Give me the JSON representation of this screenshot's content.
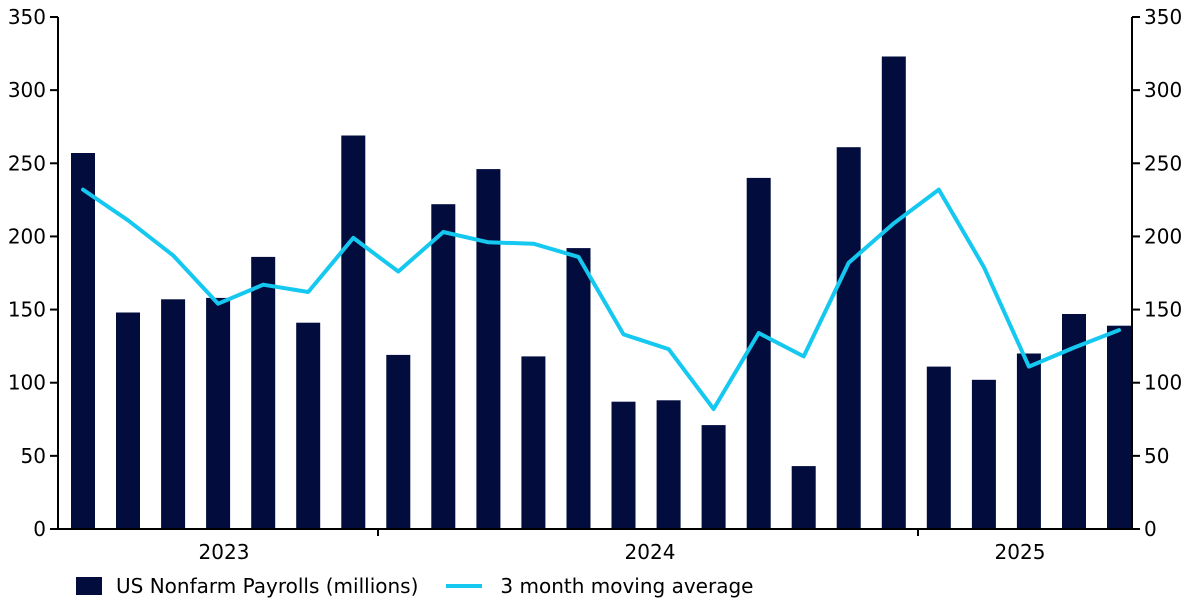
{
  "chart_data": {
    "type": "bar",
    "y_left_ticks": [
      "0",
      "50",
      "100",
      "150",
      "200",
      "250",
      "300",
      "350"
    ],
    "y_right_ticks": [
      "0",
      "50",
      "100",
      "150",
      "200",
      "250",
      "300",
      "350"
    ],
    "ylim": [
      0,
      350
    ],
    "x_labels": [
      "2023",
      "2024",
      "2025"
    ],
    "series": [
      {
        "name": "US Nonfarm Payrolls (millions)",
        "type": "bar",
        "color": "#020c3d",
        "values": [
          257,
          148,
          157,
          158,
          186,
          141,
          269,
          119,
          222,
          246,
          118,
          192,
          87,
          88,
          71,
          240,
          43,
          261,
          323,
          111,
          102,
          120,
          147,
          139
        ]
      },
      {
        "name": "3 month moving average",
        "type": "line",
        "color": "#14c8f0",
        "values": [
          232,
          211,
          187,
          154,
          167,
          162,
          199,
          176,
          203,
          196,
          195,
          186,
          133,
          123,
          82,
          134,
          118,
          182,
          209,
          232,
          179,
          111,
          124,
          136
        ]
      }
    ],
    "grid": false,
    "legend_position": "bottom-left"
  }
}
